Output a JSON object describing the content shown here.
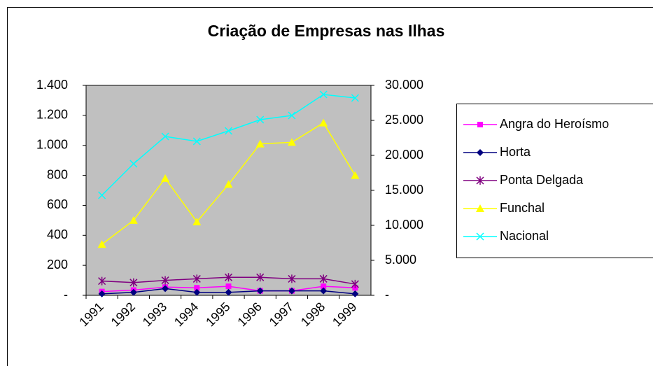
{
  "chart_data": {
    "type": "line",
    "title": "Criação de Empresas nas Ilhas",
    "categories": [
      "1991",
      "1992",
      "1993",
      "1994",
      "1995",
      "1996",
      "1997",
      "1998",
      "1999"
    ],
    "series": [
      {
        "name": "Angra do Heroísmo",
        "color": "#ff00ff",
        "marker": "square",
        "values": [
          25,
          35,
          55,
          50,
          60,
          30,
          30,
          60,
          50
        ]
      },
      {
        "name": "Horta",
        "color": "#000080",
        "marker": "diamond",
        "values": [
          10,
          20,
          45,
          20,
          20,
          30,
          30,
          30,
          10
        ]
      },
      {
        "name": "Ponta Delgada",
        "color": "#800080",
        "marker": "asterisk",
        "values": [
          95,
          85,
          100,
          110,
          120,
          120,
          110,
          110,
          75
        ]
      },
      {
        "name": "Funchal",
        "color": "#ffff00",
        "marker": "triangle",
        "values": [
          340,
          500,
          780,
          490,
          740,
          1010,
          1020,
          1150,
          800
        ]
      },
      {
        "name": "Nacional",
        "color": "#00ffff",
        "marker": "x",
        "axis": "y2",
        "values": [
          14300,
          18800,
          22700,
          22000,
          23500,
          25100,
          25700,
          28700,
          28200
        ]
      }
    ],
    "ylim": [
      0,
      1400
    ],
    "yticks": [
      {
        "value": 0,
        "label": "-"
      },
      200,
      400,
      600,
      800,
      {
        "value": 1000,
        "label": "1.000"
      },
      {
        "value": 1200,
        "label": "1.200"
      },
      {
        "value": 1400,
        "label": "1.400"
      }
    ],
    "y2lim": [
      0,
      30000
    ],
    "y2ticks": [
      {
        "value": 0,
        "label": "-"
      },
      {
        "value": 5000,
        "label": "5.000"
      },
      {
        "value": 10000,
        "label": "10.000"
      },
      {
        "value": 15000,
        "label": "15.000"
      },
      {
        "value": 20000,
        "label": "20.000"
      },
      {
        "value": 25000,
        "label": "25.000"
      },
      {
        "value": 30000,
        "label": "30.000"
      }
    ],
    "plot_background": "#c0c0c0",
    "grid": false,
    "legend": "right"
  }
}
